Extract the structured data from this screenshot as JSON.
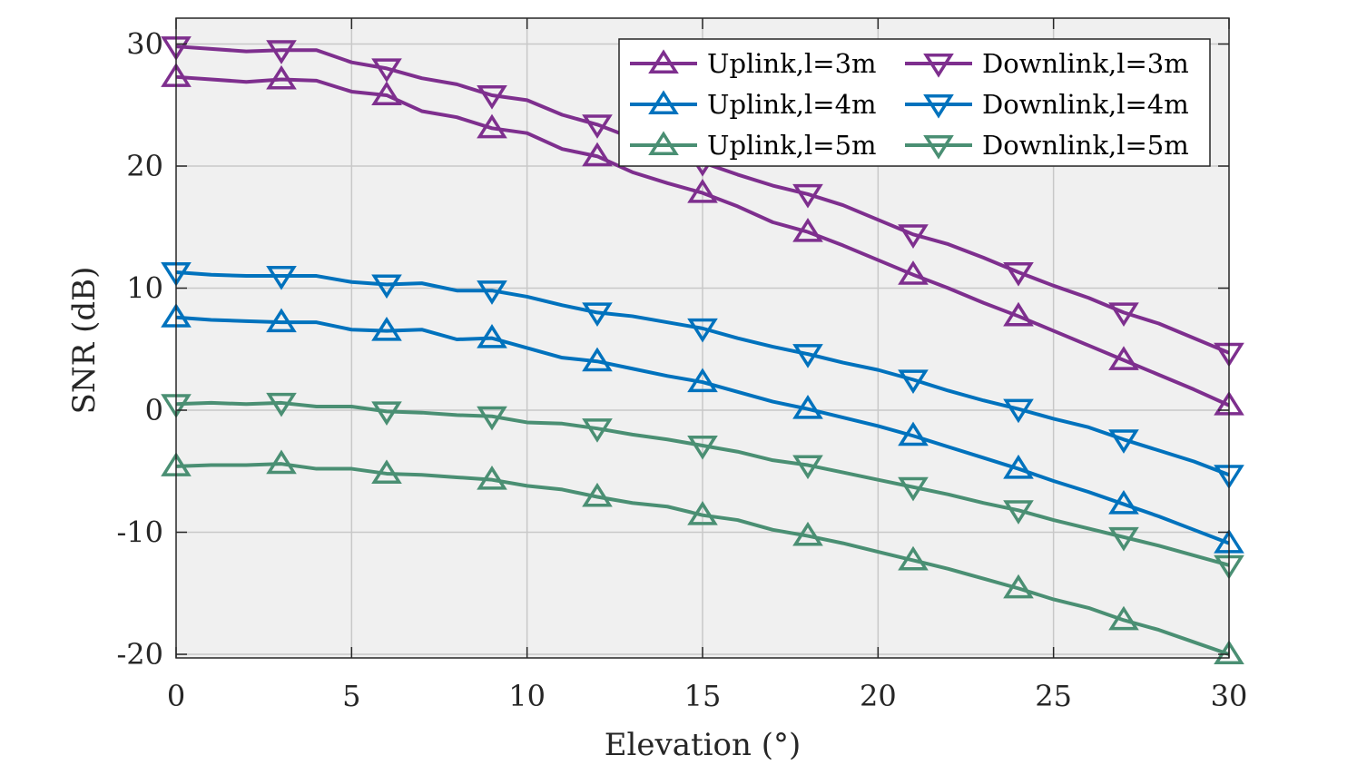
{
  "chart_data": {
    "type": "line",
    "title": "",
    "xlabel": "Elevation (°)",
    "ylabel": "SNR (dB)",
    "xlim": [
      0,
      30
    ],
    "ylim": [
      -20,
      32
    ],
    "xticks": [
      0,
      5,
      10,
      15,
      20,
      25,
      30
    ],
    "yticks": [
      -20,
      -10,
      0,
      10,
      20,
      30
    ],
    "grid": true,
    "legend_position": "top-right",
    "x": [
      0,
      1,
      2,
      3,
      4,
      5,
      6,
      7,
      8,
      9,
      10,
      11,
      12,
      13,
      14,
      15,
      16,
      17,
      18,
      19,
      20,
      21,
      22,
      23,
      24,
      25,
      26,
      27,
      28,
      29,
      30
    ],
    "marker_x": [
      0,
      3,
      6,
      9,
      12,
      15,
      18,
      21,
      24,
      27,
      30
    ],
    "series": [
      {
        "name": "Uplink,l=3m",
        "color": "#7e2f8e",
        "marker": "triangle-up",
        "values": [
          27.3,
          27.1,
          26.9,
          27.1,
          27.0,
          26.1,
          25.8,
          24.5,
          24.0,
          23.1,
          22.7,
          21.4,
          20.8,
          19.5,
          18.6,
          17.8,
          16.7,
          15.4,
          14.6,
          13.5,
          12.3,
          11.1,
          10.0,
          8.8,
          7.7,
          6.5,
          5.3,
          4.1,
          2.9,
          1.7,
          0.4
        ]
      },
      {
        "name": "Downlink,l=3m",
        "color": "#7e2f8e",
        "marker": "triangle-down",
        "values": [
          29.8,
          29.6,
          29.4,
          29.5,
          29.5,
          28.5,
          28.0,
          27.2,
          26.7,
          25.8,
          25.4,
          24.2,
          23.4,
          22.3,
          21.2,
          20.3,
          19.3,
          18.4,
          17.7,
          16.8,
          15.6,
          14.4,
          13.6,
          12.5,
          11.3,
          10.2,
          9.2,
          8.0,
          7.1,
          5.9,
          4.7
        ]
      },
      {
        "name": "Uplink,l=4m",
        "color": "#0072bd",
        "marker": "triangle-up",
        "values": [
          7.6,
          7.4,
          7.3,
          7.2,
          7.2,
          6.6,
          6.5,
          6.6,
          5.8,
          5.9,
          5.1,
          4.3,
          4.0,
          3.4,
          2.8,
          2.3,
          1.5,
          0.7,
          0.1,
          -0.6,
          -1.3,
          -2.1,
          -3.0,
          -3.9,
          -4.8,
          -5.8,
          -6.7,
          -7.7,
          -8.7,
          -9.8,
          -10.9
        ]
      },
      {
        "name": "Downlink,l=4m",
        "color": "#0072bd",
        "marker": "triangle-down",
        "values": [
          11.3,
          11.1,
          11.0,
          11.0,
          11.0,
          10.5,
          10.3,
          10.4,
          9.8,
          9.8,
          9.3,
          8.6,
          8.0,
          7.7,
          7.2,
          6.7,
          5.9,
          5.2,
          4.6,
          3.9,
          3.3,
          2.5,
          1.6,
          0.8,
          0.1,
          -0.7,
          -1.4,
          -2.4,
          -3.3,
          -4.2,
          -5.3
        ]
      },
      {
        "name": "Uplink,l=5m",
        "color": "#4a8f73",
        "marker": "triangle-up",
        "values": [
          -4.6,
          -4.5,
          -4.5,
          -4.4,
          -4.8,
          -4.8,
          -5.2,
          -5.3,
          -5.5,
          -5.7,
          -6.2,
          -6.5,
          -7.1,
          -7.6,
          -7.9,
          -8.6,
          -9.0,
          -9.8,
          -10.3,
          -10.9,
          -11.6,
          -12.3,
          -13.0,
          -13.8,
          -14.6,
          -15.5,
          -16.2,
          -17.2,
          -18.0,
          -19.0,
          -20.0
        ]
      },
      {
        "name": "Downlink,l=5m",
        "color": "#4a8f73",
        "marker": "triangle-down",
        "values": [
          0.5,
          0.6,
          0.5,
          0.6,
          0.3,
          0.3,
          -0.1,
          -0.2,
          -0.4,
          -0.5,
          -1.0,
          -1.1,
          -1.5,
          -2.0,
          -2.4,
          -2.9,
          -3.4,
          -4.1,
          -4.5,
          -5.1,
          -5.7,
          -6.3,
          -6.9,
          -7.6,
          -8.2,
          -9.0,
          -9.7,
          -10.4,
          -11.1,
          -11.9,
          -12.7
        ]
      }
    ]
  }
}
